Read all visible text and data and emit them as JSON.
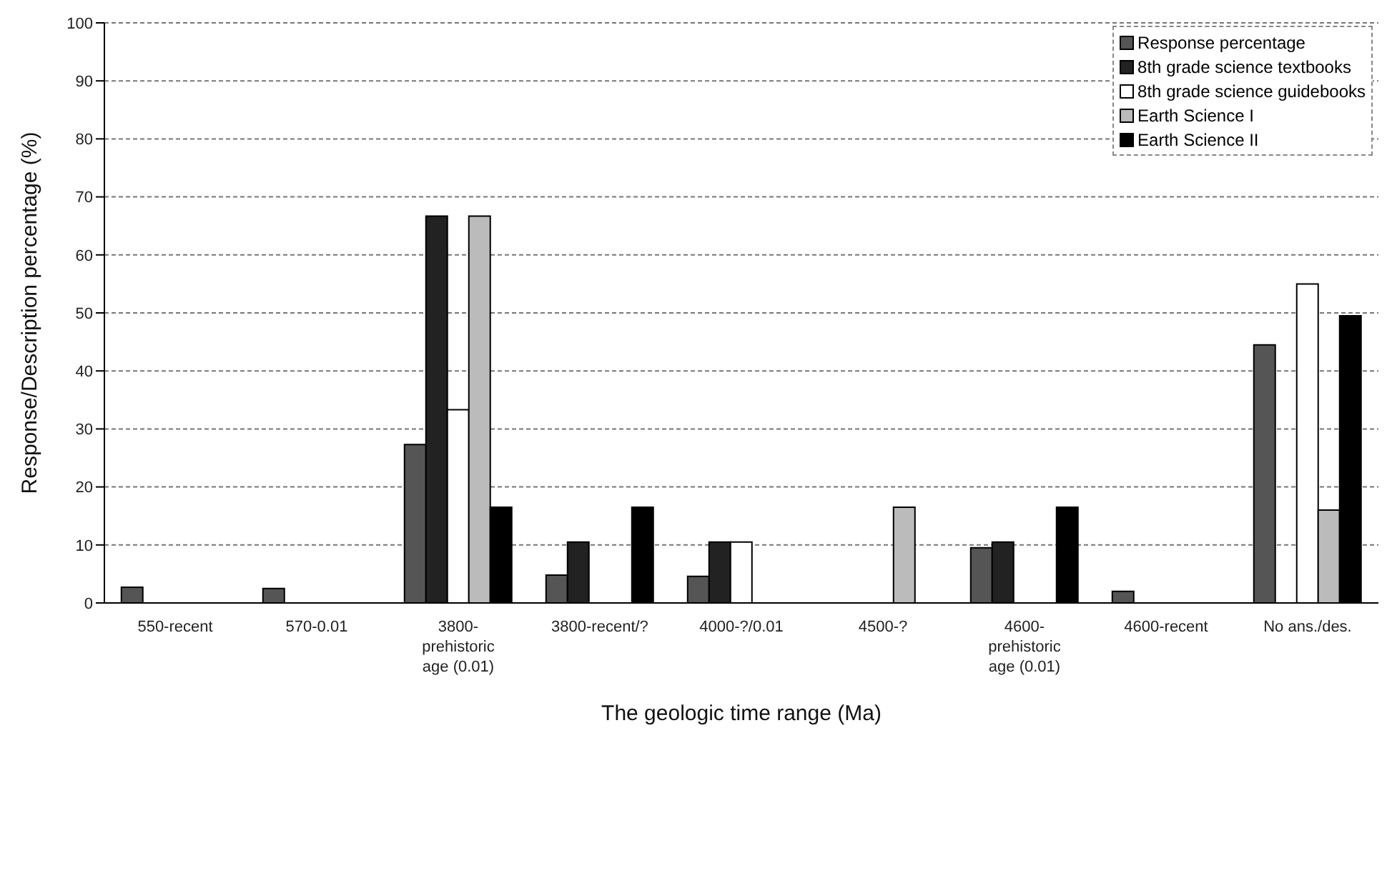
{
  "chart_data": {
    "type": "bar",
    "xlabel": "The geologic time range (Ma)",
    "ylabel": "Response/Description percentage (%)",
    "categories": [
      "550-recent",
      "570-0.01",
      "3800-prehistoric age (0.01)",
      "3800-recent/?",
      "4000-?/0.01",
      "4500-?",
      "4600-prehistoric age (0.01)",
      "4600-recent",
      "No ans./des."
    ],
    "series": [
      {
        "name": "Response percentage",
        "color": "#555555",
        "values": [
          2.7,
          2.5,
          27.3,
          4.8,
          4.6,
          0,
          9.5,
          2,
          44.5
        ]
      },
      {
        "name": "8th grade science textbooks",
        "color": "#222222",
        "values": [
          0,
          0,
          66.7,
          10.5,
          10.5,
          0,
          10.5,
          0,
          0
        ]
      },
      {
        "name": "8th grade science guidebooks",
        "color": "#ffffff",
        "values": [
          0,
          0,
          33.3,
          0,
          10.5,
          0,
          0,
          0,
          55
        ]
      },
      {
        "name": "Earth Science I",
        "color": "#bbbbbb",
        "values": [
          0,
          0,
          66.7,
          0,
          0,
          16.5,
          0,
          0,
          16
        ]
      },
      {
        "name": "Earth Science II",
        "color": "#000000",
        "values": [
          0,
          0,
          16.5,
          16.5,
          0,
          0,
          16.5,
          0,
          49.5
        ]
      }
    ],
    "ylim": [
      0,
      100
    ],
    "yticks": [
      0,
      10,
      20,
      30,
      40,
      50,
      60,
      70,
      80,
      90,
      100
    ],
    "grid": "y",
    "legend": "top right"
  }
}
